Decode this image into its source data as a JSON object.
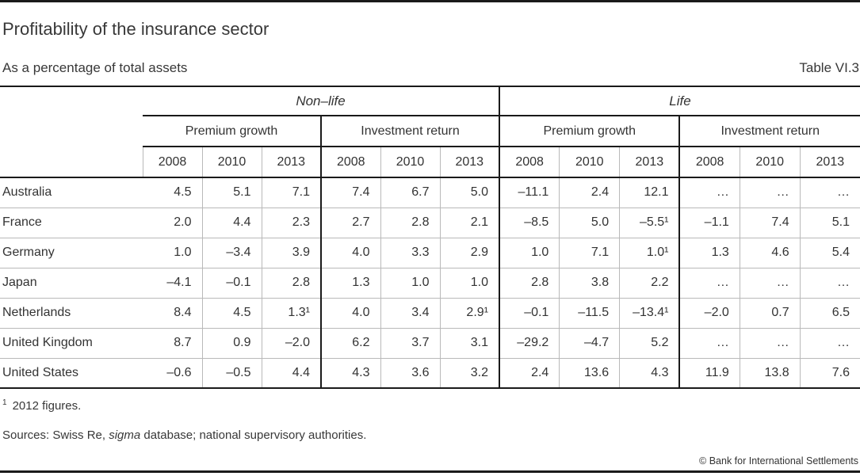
{
  "chart_data": {
    "type": "table",
    "title": "Profitability of the insurance sector",
    "subtitle": "As a percentage of total assets",
    "table_number": "Table VI.3",
    "column_groups": [
      {
        "label": "Non–life",
        "subgroups": [
          "Premium growth",
          "Investment return"
        ]
      },
      {
        "label": "Life",
        "subgroups": [
          "Premium growth",
          "Investment return"
        ]
      }
    ],
    "years": [
      "2008",
      "2010",
      "2013"
    ],
    "rows": [
      {
        "country": "Australia",
        "values": [
          "4.5",
          "5.1",
          "7.1",
          "7.4",
          "6.7",
          "5.0",
          "–11.1",
          "2.4",
          "12.1",
          "…",
          "…",
          "…"
        ]
      },
      {
        "country": "France",
        "values": [
          "2.0",
          "4.4",
          "2.3",
          "2.7",
          "2.8",
          "2.1",
          "–8.5",
          "5.0",
          "–5.5¹",
          "–1.1",
          "7.4",
          "5.1"
        ]
      },
      {
        "country": "Germany",
        "values": [
          "1.0",
          "–3.4",
          "3.9",
          "4.0",
          "3.3",
          "2.9",
          "1.0",
          "7.1",
          "1.0¹",
          "1.3",
          "4.6",
          "5.4"
        ]
      },
      {
        "country": "Japan",
        "values": [
          "–4.1",
          "–0.1",
          "2.8",
          "1.3",
          "1.0",
          "1.0",
          "2.8",
          "3.8",
          "2.2",
          "…",
          "…",
          "…"
        ]
      },
      {
        "country": "Netherlands",
        "values": [
          "8.4",
          "4.5",
          "1.3¹",
          "4.0",
          "3.4",
          "2.9¹",
          "–0.1",
          "–11.5",
          "–13.4¹",
          "–2.0",
          "0.7",
          "6.5"
        ]
      },
      {
        "country": "United Kingdom",
        "values": [
          "8.7",
          "0.9",
          "–2.0",
          "6.2",
          "3.7",
          "3.1",
          "–29.2",
          "–4.7",
          "5.2",
          "…",
          "…",
          "…"
        ]
      },
      {
        "country": "United States",
        "values": [
          "–0.6",
          "–0.5",
          "4.4",
          "4.3",
          "3.6",
          "3.2",
          "2.4",
          "13.6",
          "4.3",
          "11.9",
          "13.8",
          "7.6"
        ]
      }
    ],
    "footnote_marker": "1",
    "footnote_text": "2012 figures.",
    "sources": {
      "prefix": "Sources: Swiss Re, ",
      "italic": "sigma",
      "suffix": " database; national supervisory authorities."
    }
  },
  "footer": {
    "copyright": "© Bank for International Settlements"
  }
}
